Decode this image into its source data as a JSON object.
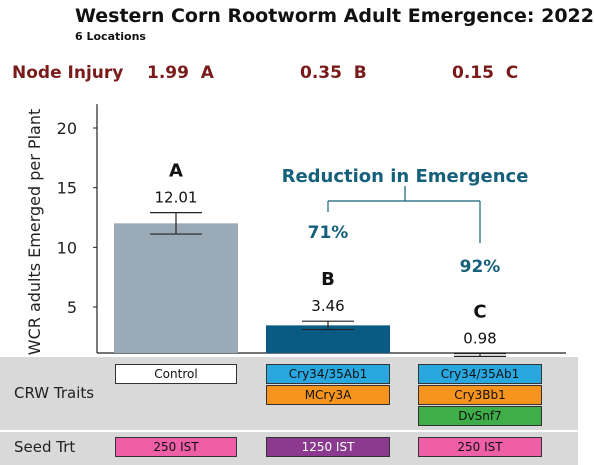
{
  "header": {
    "title": "Western Corn Rootworm Adult Emergence: 2022",
    "subtitle": "6 Locations"
  },
  "node_injury": {
    "label": "Node Injury",
    "values": [
      {
        "value": "1.99",
        "letter": "A"
      },
      {
        "value": "0.35",
        "letter": "B"
      },
      {
        "value": "0.15",
        "letter": "C"
      }
    ]
  },
  "chart_data": {
    "type": "bar",
    "ylabel": "WCR adults Emerged per Plant",
    "ylim": [
      1.5,
      22
    ],
    "yticks": [
      5,
      10,
      15,
      20
    ],
    "categories": [
      "Control",
      "Cry34/35Ab1 + MCry3A",
      "Cry34/35Ab1 + Cry3Bb1 + DvSnf7"
    ],
    "values": [
      12.01,
      3.46,
      0.98
    ],
    "error_bars": [
      0.9,
      0.35,
      0.12
    ],
    "letters": [
      "A",
      "B",
      "C"
    ],
    "bar_colors": [
      "#9aabb7",
      "#0a5b84",
      "#b2dc8c"
    ],
    "annotation": {
      "title": "Reduction in Emergence",
      "reductions": [
        "71%",
        "92%"
      ],
      "color": "#15607a"
    }
  },
  "traits": {
    "label": "CRW Traits",
    "columns": [
      [
        {
          "text": "Control",
          "color": "#ffffff"
        }
      ],
      [
        {
          "text": "Cry34/35Ab1",
          "color": "#29a8e0"
        },
        {
          "text": "MCry3A",
          "color": "#f7941d"
        }
      ],
      [
        {
          "text": "Cry34/35Ab1",
          "color": "#29a8e0"
        },
        {
          "text": "Cry3Bb1",
          "color": "#f7941d"
        },
        {
          "text": "DvSnf7",
          "color": "#3fae49"
        }
      ]
    ]
  },
  "seed_treatment": {
    "label": "Seed Trt",
    "items": [
      {
        "text": "250 IST",
        "color": "#ee5fa7",
        "text_color": "#111111"
      },
      {
        "text": "1250 IST",
        "color": "#8b3a8f",
        "text_color": "#ffffff"
      },
      {
        "text": "250 IST",
        "color": "#ee5fa7",
        "text_color": "#111111"
      }
    ]
  }
}
